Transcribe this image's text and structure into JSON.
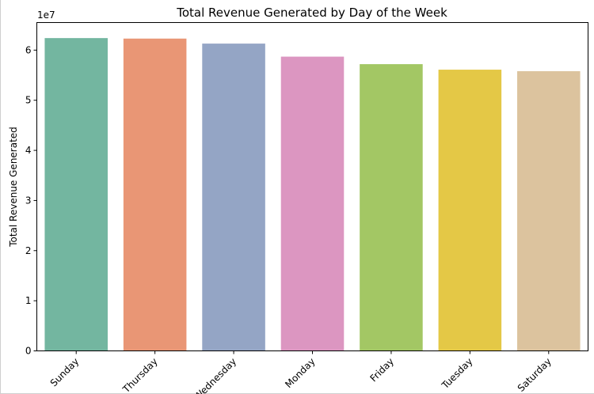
{
  "chart_data": {
    "type": "bar",
    "title": "Total Revenue Generated by Day of the Week",
    "xlabel": "",
    "ylabel": "Total Revenue Generated",
    "y_offset_label": "1e7",
    "ylim": [
      0,
      65500000
    ],
    "yticks": [
      0,
      1,
      2,
      3,
      4,
      5,
      6
    ],
    "y_tick_scale": 10000000,
    "categories": [
      "Sunday",
      "Thursday",
      "Wednesday",
      "Monday",
      "Friday",
      "Tuesday",
      "Saturday"
    ],
    "values": [
      62400000,
      62300000,
      61300000,
      58700000,
      57200000,
      56100000,
      55800000
    ],
    "colors": [
      "#73b6a0",
      "#e99675",
      "#94a5c5",
      "#dc96c1",
      "#a3c764",
      "#e4c846",
      "#dcc39e"
    ],
    "grid": false,
    "legend": "none"
  }
}
